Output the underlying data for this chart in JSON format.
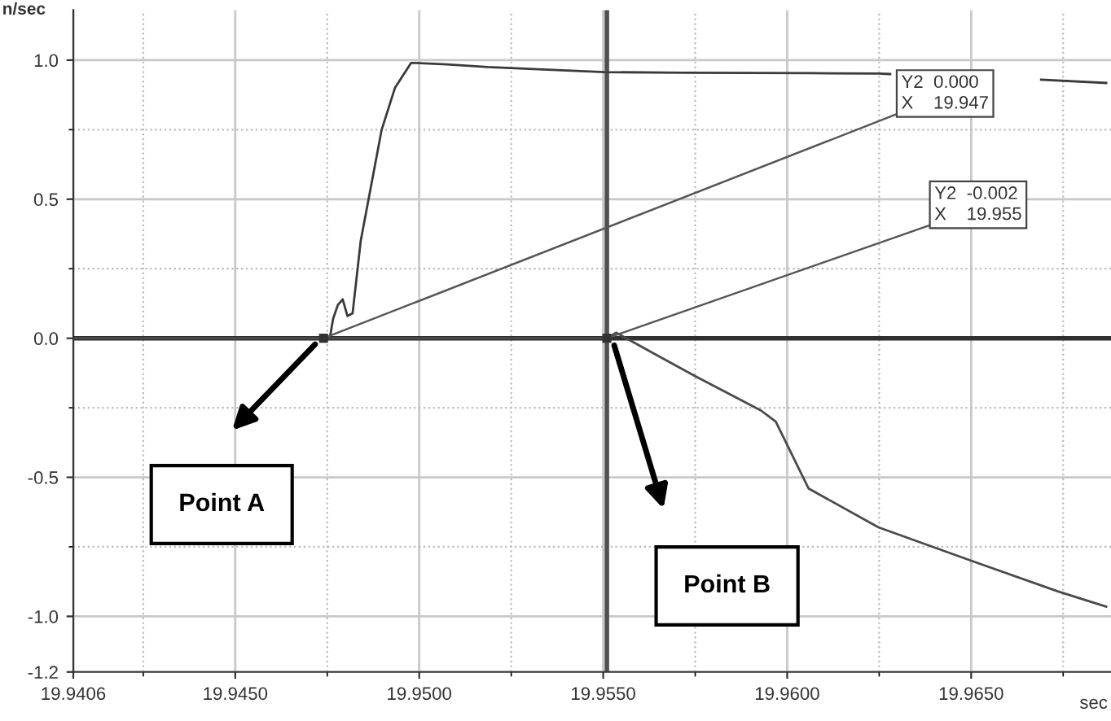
{
  "chart_data": {
    "type": "line",
    "xlabel": "sec",
    "ylabel": "n/sec",
    "xlim": [
      19.9406,
      19.9688
    ],
    "ylim": [
      -1.2,
      1.18
    ],
    "xticks": [
      19.9406,
      {
        "value": 19.945,
        "label": "19.9450"
      },
      {
        "value": 19.95,
        "label": "19.9500"
      },
      {
        "value": 19.955,
        "label": "19.9550"
      },
      {
        "value": 19.96,
        "label": "19.9600"
      },
      {
        "value": 19.965,
        "label": "19.9650"
      }
    ],
    "yticks": [
      {
        "value": 1,
        "label": "1.0"
      },
      0.5,
      {
        "value": 0,
        "label": "0.0"
      },
      -0.5,
      {
        "value": -1,
        "label": "-1.0"
      },
      -1.2
    ],
    "grid": true,
    "legend": false,
    "marker": "none",
    "line_style": "solid",
    "series": [
      {
        "color": "#3a3a3a",
        "x": [
          19.9406,
          19.94743,
          19.94757,
          19.94766,
          19.94779,
          19.94792,
          19.94805,
          19.94819,
          19.94841,
          19.94898,
          19.94934,
          19.94978,
          19.94991,
          19.95075,
          19.95186,
          19.95363,
          19.95504,
          19.95717,
          19.96071,
          19.96248,
          19.9628,
          19.96513,
          19.9669,
          19.96867
        ],
        "values": [
          0.0,
          0.0,
          0.0,
          0.07,
          0.12,
          0.14,
          0.08,
          0.09,
          0.35,
          0.75,
          0.9,
          0.99,
          0.99,
          0.985,
          0.975,
          0.965,
          0.957,
          0.955,
          0.953,
          0.952,
          0.95,
          null,
          0.93,
          0.918
        ]
      },
      {
        "color": "#4a4a4a",
        "x": [
          19.9406,
          19.9551,
          19.95535,
          19.95645,
          19.95748,
          19.95929,
          19.95969,
          19.96058,
          19.96248,
          19.965,
          19.96735,
          19.96867
        ],
        "values": [
          0.0,
          0.0,
          0.02,
          -0.06,
          -0.135,
          -0.26,
          -0.3,
          -0.54,
          -0.68,
          -0.8,
          -0.91,
          -0.965
        ]
      }
    ],
    "ref_lines": [
      {
        "axis": "y",
        "value": 0.0,
        "color": "#303030"
      },
      {
        "axis": "x",
        "value": 19.9551,
        "color": "#505050"
      }
    ],
    "annotations": [
      {
        "text": "Y2  0.000\nX    19.947",
        "x": 19.9474,
        "y": 0.0
      },
      {
        "text": "Y2  -0.002\nX    19.955",
        "x": 19.9551,
        "y": 0.0
      },
      "Point A",
      "Point B"
    ]
  }
}
